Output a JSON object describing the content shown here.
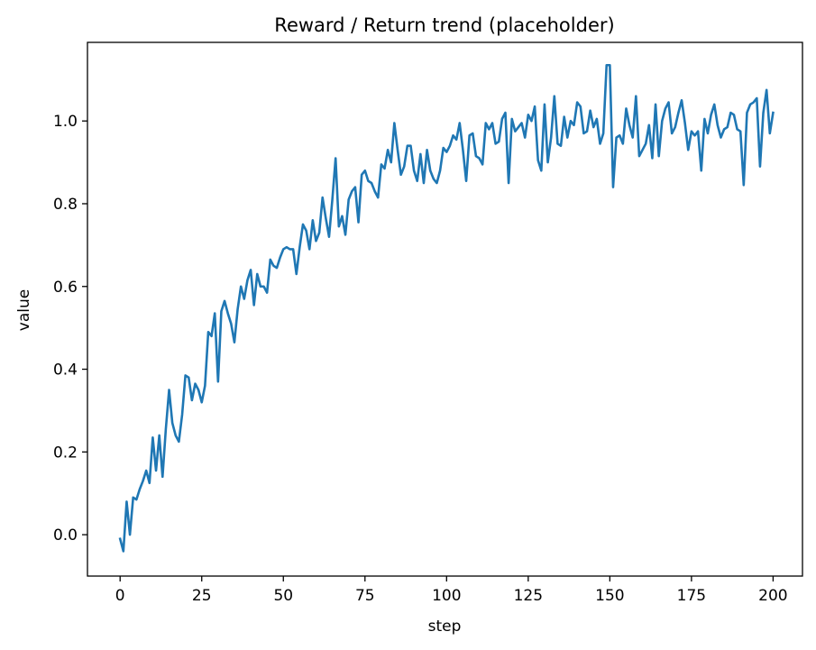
{
  "chart_data": {
    "type": "line",
    "title": "Reward / Return trend (placeholder)",
    "xlabel": "step",
    "ylabel": "value",
    "xlim": [
      -10,
      209
    ],
    "ylim": [
      -0.1,
      1.19
    ],
    "x_ticks": [
      0,
      25,
      50,
      75,
      100,
      125,
      150,
      175,
      200
    ],
    "x_tick_labels": [
      "0",
      "25",
      "50",
      "75",
      "100",
      "125",
      "150",
      "175",
      "200"
    ],
    "y_ticks": [
      0.0,
      0.2,
      0.4,
      0.6,
      0.8,
      1.0
    ],
    "y_tick_labels": [
      "0.0",
      "0.2",
      "0.4",
      "0.6",
      "0.8",
      "1.0"
    ],
    "grid": false,
    "series": [
      {
        "color": "#1f77b4",
        "x_start": 0,
        "x_step": 1,
        "values": [
          -0.01,
          -0.04,
          0.08,
          0.0,
          0.09,
          0.085,
          0.11,
          0.13,
          0.155,
          0.125,
          0.235,
          0.155,
          0.24,
          0.14,
          0.255,
          0.35,
          0.27,
          0.24,
          0.225,
          0.29,
          0.385,
          0.38,
          0.325,
          0.365,
          0.35,
          0.32,
          0.36,
          0.49,
          0.48,
          0.535,
          0.37,
          0.54,
          0.565,
          0.535,
          0.51,
          0.465,
          0.545,
          0.6,
          0.57,
          0.615,
          0.64,
          0.555,
          0.63,
          0.6,
          0.6,
          0.585,
          0.665,
          0.65,
          0.645,
          0.67,
          0.69,
          0.695,
          0.69,
          0.69,
          0.63,
          0.695,
          0.75,
          0.735,
          0.69,
          0.76,
          0.71,
          0.73,
          0.815,
          0.765,
          0.72,
          0.81,
          0.91,
          0.745,
          0.77,
          0.725,
          0.81,
          0.83,
          0.84,
          0.755,
          0.87,
          0.88,
          0.855,
          0.85,
          0.83,
          0.815,
          0.895,
          0.885,
          0.93,
          0.9,
          0.995,
          0.93,
          0.87,
          0.89,
          0.94,
          0.94,
          0.88,
          0.855,
          0.92,
          0.85,
          0.93,
          0.88,
          0.86,
          0.85,
          0.88,
          0.935,
          0.925,
          0.94,
          0.965,
          0.955,
          0.995,
          0.93,
          0.855,
          0.965,
          0.97,
          0.915,
          0.91,
          0.895,
          0.995,
          0.98,
          0.995,
          0.945,
          0.95,
          1.005,
          1.02,
          0.85,
          1.005,
          0.975,
          0.985,
          0.995,
          0.96,
          1.015,
          1.0,
          1.035,
          0.905,
          0.88,
          1.04,
          0.9,
          0.96,
          1.06,
          0.945,
          0.94,
          1.01,
          0.96,
          1.0,
          0.99,
          1.045,
          1.035,
          0.97,
          0.975,
          1.025,
          0.985,
          1.005,
          0.945,
          0.97,
          1.135,
          1.135,
          0.84,
          0.96,
          0.965,
          0.945,
          1.03,
          0.99,
          0.96,
          1.06,
          0.915,
          0.93,
          0.945,
          0.99,
          0.91,
          1.04,
          0.915,
          1.0,
          1.03,
          1.045,
          0.97,
          0.985,
          1.02,
          1.05,
          0.995,
          0.93,
          0.975,
          0.965,
          0.975,
          0.88,
          1.005,
          0.97,
          1.015,
          1.04,
          0.99,
          0.96,
          0.98,
          0.985,
          1.02,
          1.015,
          0.98,
          0.975,
          0.845,
          1.02,
          1.04,
          1.045,
          1.055,
          0.89,
          1.02,
          1.075,
          0.97,
          1.02
        ]
      }
    ]
  }
}
